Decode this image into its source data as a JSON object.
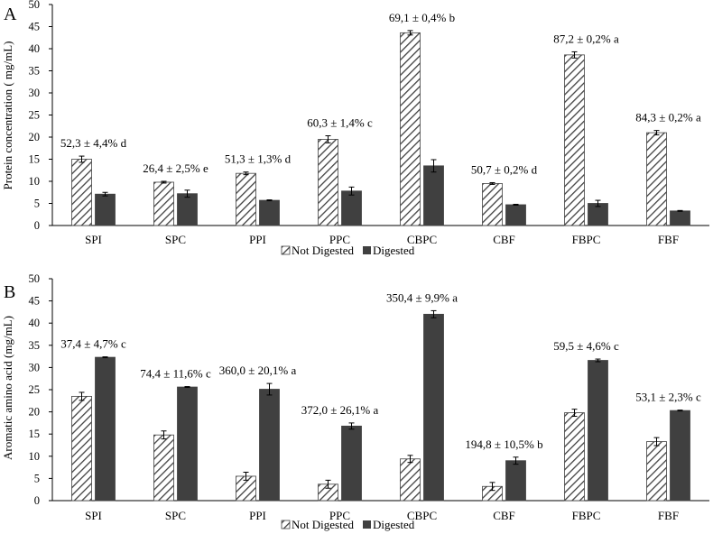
{
  "chart_data": [
    {
      "type": "bar",
      "panel_label": "A",
      "ylabel": "Protein concentration ( mg/mL)",
      "xlabel": "",
      "ylim": [
        0,
        50
      ],
      "yticks": [
        "0",
        "5",
        "10",
        "15",
        "20",
        "25",
        "30",
        "35",
        "40",
        "45",
        "50"
      ],
      "grid": false,
      "legend_position": "bottom-center",
      "categories": [
        "SPI",
        "SPC",
        "PPI",
        "PPC",
        "CBPC",
        "CBF",
        "FBPC",
        "FBF"
      ],
      "series": [
        {
          "name": "Not Digested",
          "pattern": "hatched",
          "values": [
            15.0,
            9.8,
            11.8,
            19.5,
            43.6,
            9.5,
            38.6,
            21.0
          ],
          "errors": [
            0.7,
            0.2,
            0.3,
            0.8,
            0.5,
            0.2,
            0.7,
            0.5
          ]
        },
        {
          "name": "Digested",
          "pattern": "solid",
          "values": [
            7.1,
            7.2,
            5.7,
            7.8,
            13.5,
            4.7,
            5.0,
            3.3
          ],
          "errors": [
            0.4,
            0.8,
            0.1,
            0.9,
            1.4,
            0.1,
            0.7,
            0.1
          ]
        }
      ],
      "annotations": [
        "52,3 ± 4,4% d",
        "26,4 ± 2,5% e",
        "51,3 ± 1,3% d",
        "60,3 ± 1,4% c",
        "69,1 ± 0,4% b",
        "50,7 ± 0,2% d",
        "87,2 ± 0,2% a",
        "84,3 ± 0,2% a"
      ]
    },
    {
      "type": "bar",
      "panel_label": "B",
      "ylabel": "Aromatic amino acid (mg/mL)",
      "xlabel": "",
      "ylim": [
        0,
        50
      ],
      "yticks": [
        "0",
        "5",
        "10",
        "15",
        "20",
        "25",
        "30",
        "35",
        "40",
        "45",
        "50"
      ],
      "grid": false,
      "legend_position": "bottom-center",
      "categories": [
        "SPI",
        "SPC",
        "PPI",
        "PPC",
        "CBPC",
        "CBF",
        "FBPC",
        "FBF"
      ],
      "series": [
        {
          "name": "Not Digested",
          "pattern": "hatched",
          "values": [
            23.5,
            14.8,
            5.5,
            3.7,
            9.4,
            3.2,
            19.8,
            13.3
          ],
          "errors": [
            0.9,
            0.9,
            0.9,
            0.9,
            0.8,
            0.9,
            0.8,
            0.9
          ]
        },
        {
          "name": "Digested",
          "pattern": "solid",
          "values": [
            32.3,
            25.6,
            25.1,
            16.8,
            42.0,
            9.0,
            31.6,
            20.3
          ],
          "errors": [
            0.1,
            0.1,
            1.3,
            0.7,
            0.8,
            0.8,
            0.3,
            0.1
          ]
        }
      ],
      "annotations": [
        "37,4 ± 4,7% c",
        "74,4 ± 11,6% c",
        "360,0 ± 20,1% a",
        "372,0 ± 26,1% a",
        "350,4 ± 9,9% a",
        "194,8 ± 10,5% b",
        "59,5 ± 4,6% c",
        "53,1 ± 2,3% c"
      ]
    }
  ],
  "colors": {
    "digested_fill": "#404040",
    "hatch_stroke": "#404040",
    "axis": "#000000"
  }
}
